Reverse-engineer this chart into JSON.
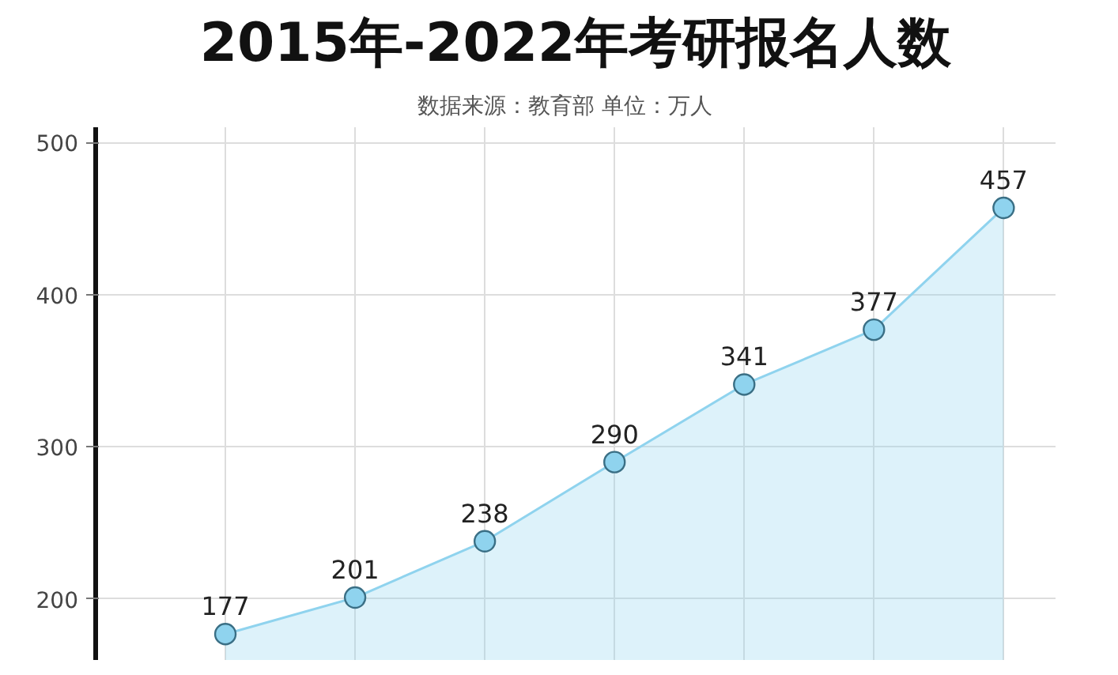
{
  "chart_data": {
    "type": "area",
    "title": "2015年-2022年考研报名人数",
    "subtitle": "数据来源：教育部    单位：万人",
    "categories": [
      null,
      null,
      null,
      null,
      null,
      null,
      null
    ],
    "series": [
      {
        "color": "#8fd3ee",
        "values": [
          177,
          201,
          238,
          290,
          341,
          377,
          457
        ]
      }
    ],
    "ylim": [
      160,
      510
    ],
    "yticks": [
      200,
      300,
      400,
      500
    ],
    "grid": true,
    "marker": "circle",
    "data_labels": true
  }
}
